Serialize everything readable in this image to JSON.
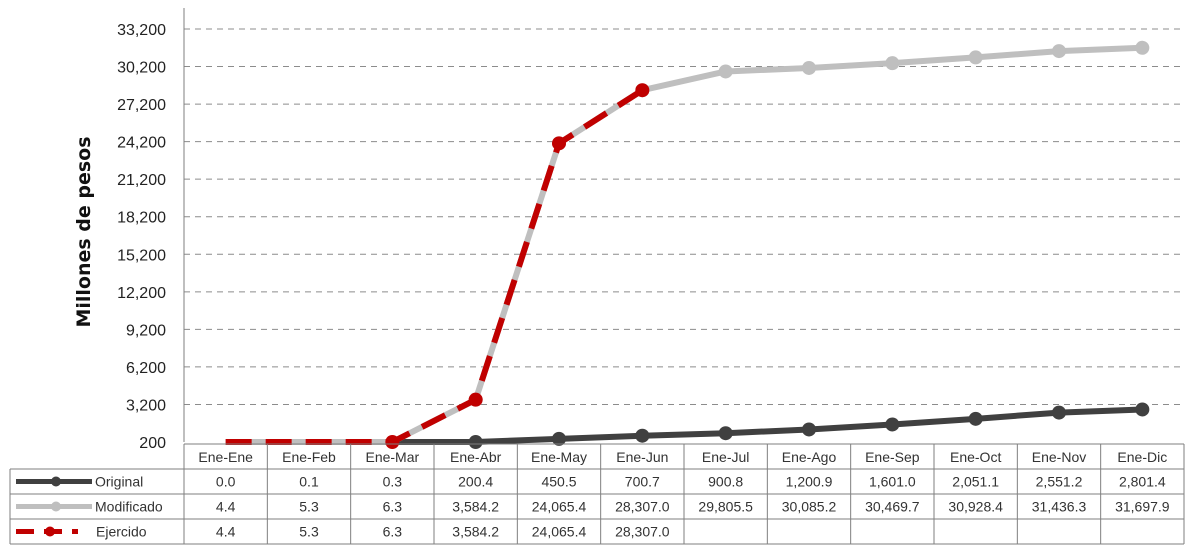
{
  "chart_data": {
    "type": "line",
    "title": "",
    "xlabel": "",
    "ylabel": "Millones de pesos",
    "ylim": [
      200,
      33200
    ],
    "yticks": [
      "200",
      "3,200",
      "6,200",
      "9,200",
      "12,200",
      "15,200",
      "18,200",
      "21,200",
      "24,200",
      "27,200",
      "30,200",
      "33,200"
    ],
    "grid": "horizontal dashed",
    "legend": "data table below the plot",
    "categories": [
      "Ene-Ene",
      "Ene-Feb",
      "Ene-Mar",
      "Ene-Abr",
      "Ene-May",
      "Ene-Jun",
      "Ene-Jul",
      "Ene-Ago",
      "Ene-Sep",
      "Ene-Oct",
      "Ene-Nov",
      "Ene-Dic"
    ],
    "series": [
      {
        "name": "Original",
        "color": "#404040",
        "style": "solid",
        "values": [
          0.0,
          0.1,
          0.3,
          200.4,
          450.5,
          700.7,
          900.8,
          1200.9,
          1601.0,
          2051.1,
          2551.2,
          2801.4
        ],
        "labels": [
          "0.0",
          "0.1",
          "0.3",
          "200.4",
          "450.5",
          "700.7",
          "900.8",
          "1,200.9",
          "1,601.0",
          "2,051.1",
          "2,551.2",
          "2,801.4"
        ]
      },
      {
        "name": "Modificado",
        "color": "#bfbfbf",
        "style": "solid",
        "values": [
          4.4,
          5.3,
          6.3,
          3584.2,
          24065.4,
          28307.0,
          29805.5,
          30085.2,
          30469.7,
          30928.4,
          31436.3,
          31697.9
        ],
        "labels": [
          "4.4",
          "5.3",
          "6.3",
          "3,584.2",
          "24,065.4",
          "28,307.0",
          "29,805.5",
          "30,085.2",
          "30,469.7",
          "30,928.4",
          "31,436.3",
          "31,697.9"
        ]
      },
      {
        "name": "Ejercido",
        "color": "#c00000",
        "style": "dashed",
        "values": [
          4.4,
          5.3,
          6.3,
          3584.2,
          24065.4,
          28307.0,
          null,
          null,
          null,
          null,
          null,
          null
        ],
        "labels": [
          "4.4",
          "5.3",
          "6.3",
          "3,584.2",
          "24,065.4",
          "28,307.0",
          "",
          "",
          "",
          "",
          "",
          ""
        ]
      }
    ]
  }
}
